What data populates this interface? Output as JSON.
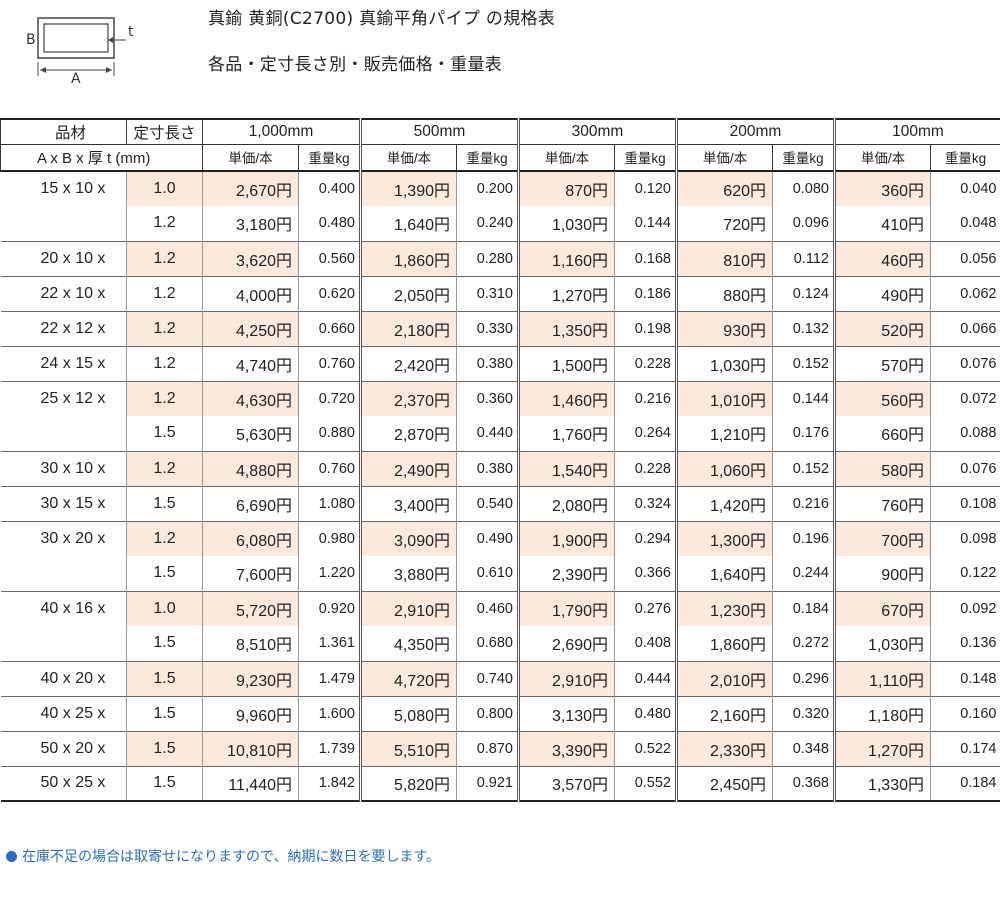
{
  "diagram": {
    "label_b": "B",
    "label_t": "t",
    "label_a": "A"
  },
  "header": {
    "title": "真鍮 黄銅(C2700) 真鍮平角パイプ の規格表",
    "subtitle": "各品・定寸長さ別・販売価格・重量表"
  },
  "table": {
    "material_label": "品材",
    "dimension_label": "A x B x 厚 t (mm)",
    "length_label": "定寸長さ",
    "lengths": [
      "1,000mm",
      "500mm",
      "300mm",
      "200mm",
      "100mm"
    ],
    "price_label": "単価/本",
    "weight_label": "重量kg",
    "rows": [
      {
        "size": "15 x 10 x",
        "t": "1.0",
        "shade": true,
        "first": true,
        "cells": [
          [
            "2,670円",
            "0.400"
          ],
          [
            "1,390円",
            "0.200"
          ],
          [
            "870円",
            "0.120"
          ],
          [
            "620円",
            "0.080"
          ],
          [
            "360円",
            "0.040"
          ]
        ]
      },
      {
        "size": "",
        "t": "1.2",
        "shade": false,
        "cells": [
          [
            "3,180円",
            "0.480"
          ],
          [
            "1,640円",
            "0.240"
          ],
          [
            "1,030円",
            "0.144"
          ],
          [
            "720円",
            "0.096"
          ],
          [
            "410円",
            "0.048"
          ]
        ]
      },
      {
        "size": "20 x 10 x",
        "t": "1.2",
        "shade": true,
        "cells": [
          [
            "3,620円",
            "0.560"
          ],
          [
            "1,860円",
            "0.280"
          ],
          [
            "1,160円",
            "0.168"
          ],
          [
            "810円",
            "0.112"
          ],
          [
            "460円",
            "0.056"
          ]
        ]
      },
      {
        "size": "22 x 10 x",
        "t": "1.2",
        "shade": false,
        "cells": [
          [
            "4,000円",
            "0.620"
          ],
          [
            "2,050円",
            "0.310"
          ],
          [
            "1,270円",
            "0.186"
          ],
          [
            "880円",
            "0.124"
          ],
          [
            "490円",
            "0.062"
          ]
        ]
      },
      {
        "size": "22 x 12 x",
        "t": "1.2",
        "shade": true,
        "cells": [
          [
            "4,250円",
            "0.660"
          ],
          [
            "2,180円",
            "0.330"
          ],
          [
            "1,350円",
            "0.198"
          ],
          [
            "930円",
            "0.132"
          ],
          [
            "520円",
            "0.066"
          ]
        ]
      },
      {
        "size": "24 x 15 x",
        "t": "1.2",
        "shade": false,
        "cells": [
          [
            "4,740円",
            "0.760"
          ],
          [
            "2,420円",
            "0.380"
          ],
          [
            "1,500円",
            "0.228"
          ],
          [
            "1,030円",
            "0.152"
          ],
          [
            "570円",
            "0.076"
          ]
        ]
      },
      {
        "size": "25 x 12 x",
        "t": "1.2",
        "shade": true,
        "cells": [
          [
            "4,630円",
            "0.720"
          ],
          [
            "2,370円",
            "0.360"
          ],
          [
            "1,460円",
            "0.216"
          ],
          [
            "1,010円",
            "0.144"
          ],
          [
            "560円",
            "0.072"
          ]
        ]
      },
      {
        "size": "",
        "t": "1.5",
        "shade": false,
        "cells": [
          [
            "5,630円",
            "0.880"
          ],
          [
            "2,870円",
            "0.440"
          ],
          [
            "1,760円",
            "0.264"
          ],
          [
            "1,210円",
            "0.176"
          ],
          [
            "660円",
            "0.088"
          ]
        ]
      },
      {
        "size": "30 x 10 x",
        "t": "1.2",
        "shade": true,
        "cells": [
          [
            "4,880円",
            "0.760"
          ],
          [
            "2,490円",
            "0.380"
          ],
          [
            "1,540円",
            "0.228"
          ],
          [
            "1,060円",
            "0.152"
          ],
          [
            "580円",
            "0.076"
          ]
        ]
      },
      {
        "size": "30 x 15 x",
        "t": "1.5",
        "shade": false,
        "cells": [
          [
            "6,690円",
            "1.080"
          ],
          [
            "3,400円",
            "0.540"
          ],
          [
            "2,080円",
            "0.324"
          ],
          [
            "1,420円",
            "0.216"
          ],
          [
            "760円",
            "0.108"
          ]
        ]
      },
      {
        "size": "30 x 20 x",
        "t": "1.2",
        "shade": true,
        "cells": [
          [
            "6,080円",
            "0.980"
          ],
          [
            "3,090円",
            "0.490"
          ],
          [
            "1,900円",
            "0.294"
          ],
          [
            "1,300円",
            "0.196"
          ],
          [
            "700円",
            "0.098"
          ]
        ]
      },
      {
        "size": "",
        "t": "1.5",
        "shade": false,
        "cells": [
          [
            "7,600円",
            "1.220"
          ],
          [
            "3,880円",
            "0.610"
          ],
          [
            "2,390円",
            "0.366"
          ],
          [
            "1,640円",
            "0.244"
          ],
          [
            "900円",
            "0.122"
          ]
        ]
      },
      {
        "size": "40 x 16 x",
        "t": "1.0",
        "shade": true,
        "cells": [
          [
            "5,720円",
            "0.920"
          ],
          [
            "2,910円",
            "0.460"
          ],
          [
            "1,790円",
            "0.276"
          ],
          [
            "1,230円",
            "0.184"
          ],
          [
            "670円",
            "0.092"
          ]
        ]
      },
      {
        "size": "",
        "t": "1.5",
        "shade": false,
        "cells": [
          [
            "8,510円",
            "1.361"
          ],
          [
            "4,350円",
            "0.680"
          ],
          [
            "2,690円",
            "0.408"
          ],
          [
            "1,860円",
            "0.272"
          ],
          [
            "1,030円",
            "0.136"
          ]
        ]
      },
      {
        "size": "40 x 20 x",
        "t": "1.5",
        "shade": true,
        "cells": [
          [
            "9,230円",
            "1.479"
          ],
          [
            "4,720円",
            "0.740"
          ],
          [
            "2,910円",
            "0.444"
          ],
          [
            "2,010円",
            "0.296"
          ],
          [
            "1,110円",
            "0.148"
          ]
        ]
      },
      {
        "size": "40 x 25 x",
        "t": "1.5",
        "shade": false,
        "cells": [
          [
            "9,960円",
            "1.600"
          ],
          [
            "5,080円",
            "0.800"
          ],
          [
            "3,130円",
            "0.480"
          ],
          [
            "2,160円",
            "0.320"
          ],
          [
            "1,180円",
            "0.160"
          ]
        ]
      },
      {
        "size": "50 x 20 x",
        "t": "1.5",
        "shade": true,
        "cells": [
          [
            "10,810円",
            "1.739"
          ],
          [
            "5,510円",
            "0.870"
          ],
          [
            "3,390円",
            "0.522"
          ],
          [
            "2,330円",
            "0.348"
          ],
          [
            "1,270円",
            "0.174"
          ]
        ]
      },
      {
        "size": "50 x 25 x",
        "t": "1.5",
        "shade": false,
        "cells": [
          [
            "11,440円",
            "1.842"
          ],
          [
            "5,820円",
            "0.921"
          ],
          [
            "3,570円",
            "0.552"
          ],
          [
            "2,450円",
            "0.368"
          ],
          [
            "1,330円",
            "0.184"
          ]
        ]
      }
    ]
  },
  "note": "在庫不足の場合は取寄せになりますので、納期に数日を要します。",
  "colors": {
    "shade": "#fbe9dc",
    "note": "#2a6fbe"
  }
}
